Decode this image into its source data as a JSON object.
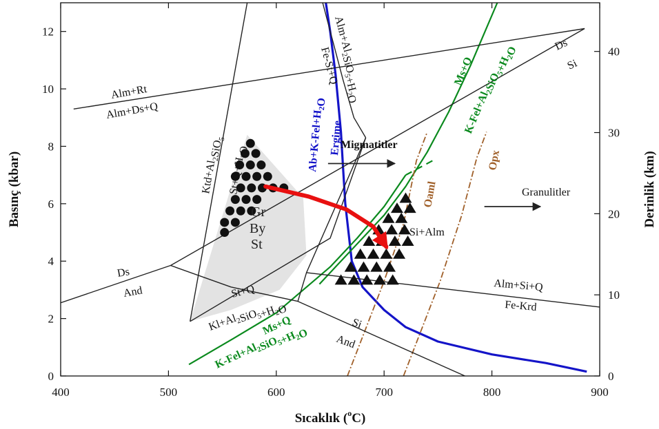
{
  "chart_data": {
    "type": "line",
    "xlabel": "Sıcaklık (°C)",
    "xlabel_main": "Sıcaklık (",
    "xlabel_sup": "o",
    "xlabel_end": "C)",
    "ylabel": "Basınç (kbar)",
    "ylabel_right": "Derinlik (km)",
    "xlim": [
      400,
      900
    ],
    "ylim": [
      0,
      13
    ],
    "ylim_right": [
      0,
      46
    ],
    "x_ticks": [
      "400",
      "500",
      "600",
      "700",
      "800",
      "900"
    ],
    "y_ticks": [
      "0",
      "2",
      "4",
      "6",
      "8",
      "10",
      "12"
    ],
    "y_right_ticks": [
      "0",
      "10",
      "20",
      "30",
      "40"
    ],
    "labels": {
      "alm_rt": "Alm+Rt",
      "alm_ds_q": "Alm+Ds+Q",
      "alm_alsio": "Alm+Al2SiO5+H2O",
      "fe_st_q": "Fe-St+Q",
      "ds_top": "Ds",
      "si_top": "Si",
      "ktd": "Ktd+Al2SiO5",
      "st_q_h2o": "St+Q+H2O",
      "ab_kfel": "Ab+K-Fel+H2O",
      "ergime": "Ergime",
      "ms_q_top": "Ms+Q",
      "kfel_top": "K-Fel+Al2SiO5+H2O",
      "migmatitler": "Migmatitler",
      "oaml": "Oaml",
      "opx": "Opx",
      "granulitler": "Granulitler",
      "gr": "Gr",
      "by": "By",
      "st": "St",
      "si_alm": "Si+Alm",
      "ds_left": "Ds",
      "and_left": "And",
      "st_q": "St+Q",
      "kl_alsio": "Kl+Al2SiO5+H2O",
      "ms_q_bottom": "Ms+Q",
      "kfel_bottom": "K-Fel+Al2SiO5+H2O",
      "si_bottom": "Si",
      "and_bottom": "And",
      "alm_si_q": "Alm+Si+Q",
      "fe_krd": "Fe-Krd"
    },
    "series": [
      {
        "id": "melting",
        "color": "#1414c8",
        "width": 3.2,
        "dash": "",
        "x": [
          646,
          650,
          655,
          660,
          662,
          664,
          667,
          670,
          680,
          700,
          720,
          750,
          800,
          850,
          888
        ],
        "y": [
          13,
          12,
          10.5,
          8.5,
          7.2,
          6.0,
          5.0,
          4.0,
          3.1,
          2.3,
          1.7,
          1.2,
          0.75,
          0.45,
          0.15
        ]
      },
      {
        "id": "muscovite-lower",
        "color": "#0b8a1e",
        "width": 2.2,
        "dash": "",
        "x": [
          519,
          560,
          600,
          625,
          650,
          675,
          700,
          720
        ],
        "y": [
          0.4,
          1.3,
          2.2,
          3.0,
          3.8,
          4.8,
          5.9,
          7.0
        ]
      },
      {
        "id": "muscovite-upper",
        "color": "#0b8a1e",
        "width": 2.2,
        "dash": "",
        "x": [
          640,
          660,
          680,
          700,
          720,
          740,
          760,
          780,
          805
        ],
        "y": [
          3.2,
          4.0,
          4.8,
          5.6,
          6.6,
          7.8,
          9.2,
          10.8,
          13
        ]
      },
      {
        "id": "muscovite-dashed",
        "color": "#0b8a1e",
        "width": 2.2,
        "dash": "10,7",
        "x": [
          720,
          745
        ],
        "y": [
          7.0,
          7.5
        ]
      },
      {
        "id": "oaml",
        "color": "#a0602a",
        "width": 1.8,
        "dash": "9,3,2,3",
        "x": [
          666,
          700,
          718,
          730,
          740
        ],
        "y": [
          0,
          3.3,
          5.3,
          7.5,
          8.5
        ]
      },
      {
        "id": "opx",
        "color": "#a0602a",
        "width": 1.8,
        "dash": "9,3,2,3",
        "x": [
          718,
          752,
          772,
          786,
          795
        ],
        "y": [
          0,
          3.3,
          5.6,
          7.6,
          8.5
        ]
      },
      {
        "id": "alm-rt",
        "color": "#222",
        "width": 1.4,
        "dash": "",
        "x": [
          412,
          886
        ],
        "y": [
          9.3,
          12.1
        ]
      },
      {
        "id": "ds-si",
        "color": "#222",
        "width": 1.4,
        "dash": "",
        "x": [
          400,
          502,
          886
        ],
        "y": [
          2.55,
          3.85,
          12.1
        ]
      },
      {
        "id": "alm-alsio",
        "color": "#222",
        "width": 1.4,
        "dash": "",
        "x": [
          643,
          662,
          672,
          683
        ],
        "y": [
          13,
          10.3,
          9.0,
          8.3
        ]
      },
      {
        "id": "ktd-left",
        "color": "#222",
        "width": 1.4,
        "dash": "",
        "x": [
          573,
          520
        ],
        "y": [
          13,
          1.9
        ]
      },
      {
        "id": "st-right",
        "color": "#222",
        "width": 1.4,
        "dash": "",
        "x": [
          520,
          650,
          683
        ],
        "y": [
          1.9,
          4.8,
          8.3
        ]
      },
      {
        "id": "st-q",
        "color": "#222",
        "width": 1.4,
        "dash": "",
        "x": [
          502,
          558,
          620,
          628,
          683
        ],
        "y": [
          3.85,
          3.1,
          2.6,
          3.6,
          8.3
        ]
      },
      {
        "id": "alm-si-q",
        "color": "#222",
        "width": 1.4,
        "dash": "",
        "x": [
          628,
          900
        ],
        "y": [
          3.6,
          2.4
        ]
      },
      {
        "id": "si-and",
        "color": "#222",
        "width": 1.4,
        "dash": "",
        "x": [
          620,
          775
        ],
        "y": [
          2.6,
          0
        ]
      }
    ],
    "arrows": [
      {
        "id": "migmatitler-arrow",
        "x": [
          648,
          710
        ],
        "y": [
          7.4,
          7.4
        ]
      },
      {
        "id": "granulitler-arrow",
        "x": [
          793,
          845
        ],
        "y": [
          5.9,
          5.9
        ]
      }
    ],
    "path_arrow": {
      "color": "#e81010",
      "x": [
        590,
        630,
        665,
        690,
        702
      ],
      "y": [
        6.6,
        6.25,
        5.8,
        5.2,
        4.5
      ]
    },
    "shaded_region": {
      "color": "#e3e3e3",
      "x": [
        520,
        573,
        625,
        628,
        603,
        558
      ],
      "y": [
        1.9,
        8.4,
        6.2,
        4.2,
        3.0,
        2.3
      ]
    },
    "circles": [
      [
        576,
        8.1
      ],
      [
        571,
        7.75
      ],
      [
        581,
        7.75
      ],
      [
        566,
        7.35
      ],
      [
        576,
        7.35
      ],
      [
        586,
        7.35
      ],
      [
        562,
        6.95
      ],
      [
        572,
        6.95
      ],
      [
        582,
        6.95
      ],
      [
        592,
        6.95
      ],
      [
        567,
        6.55
      ],
      [
        577,
        6.55
      ],
      [
        587,
        6.55
      ],
      [
        597,
        6.55
      ],
      [
        607,
        6.55
      ],
      [
        562,
        6.15
      ],
      [
        572,
        6.15
      ],
      [
        582,
        6.15
      ],
      [
        557,
        5.75
      ],
      [
        567,
        5.75
      ],
      [
        577,
        5.75
      ],
      [
        552,
        5.35
      ],
      [
        562,
        5.35
      ],
      [
        552,
        5.0
      ]
    ],
    "triangles": [
      [
        720,
        6.2
      ],
      [
        712,
        5.85
      ],
      [
        724,
        5.85
      ],
      [
        704,
        5.5
      ],
      [
        716,
        5.5
      ],
      [
        695,
        5.1
      ],
      [
        707,
        5.1
      ],
      [
        719,
        5.1
      ],
      [
        686,
        4.7
      ],
      [
        698,
        4.7
      ],
      [
        710,
        4.7
      ],
      [
        722,
        4.7
      ],
      [
        678,
        4.25
      ],
      [
        690,
        4.25
      ],
      [
        702,
        4.25
      ],
      [
        714,
        4.25
      ],
      [
        669,
        3.8
      ],
      [
        681,
        3.8
      ],
      [
        693,
        3.8
      ],
      [
        705,
        3.8
      ],
      [
        660,
        3.35
      ],
      [
        672,
        3.35
      ],
      [
        684,
        3.35
      ],
      [
        696,
        3.35
      ],
      [
        708,
        3.35
      ]
    ]
  }
}
